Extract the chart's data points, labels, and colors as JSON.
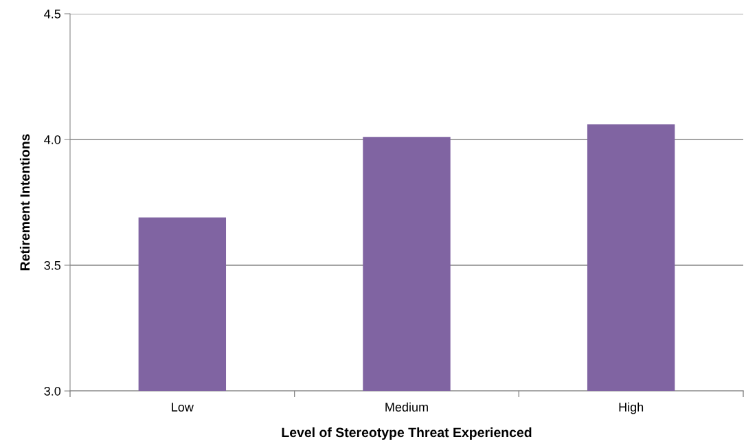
{
  "chart_data": {
    "type": "bar",
    "xlabel": "Level of Stereotype Threat Experienced",
    "ylabel": "Retirement Intentions",
    "categories": [
      "Low",
      "Medium",
      "High"
    ],
    "values": [
      3.69,
      4.01,
      4.06
    ],
    "color": "#8064a2",
    "ylim": [
      3.0,
      4.5
    ],
    "yticks": [
      {
        "value": 3.0,
        "label": "3.0"
      },
      {
        "value": 3.5,
        "label": "3.5"
      },
      {
        "value": 4.0,
        "label": "4.0"
      },
      {
        "value": 4.5,
        "label": "4.5"
      }
    ],
    "grid": "y",
    "legend": false
  }
}
